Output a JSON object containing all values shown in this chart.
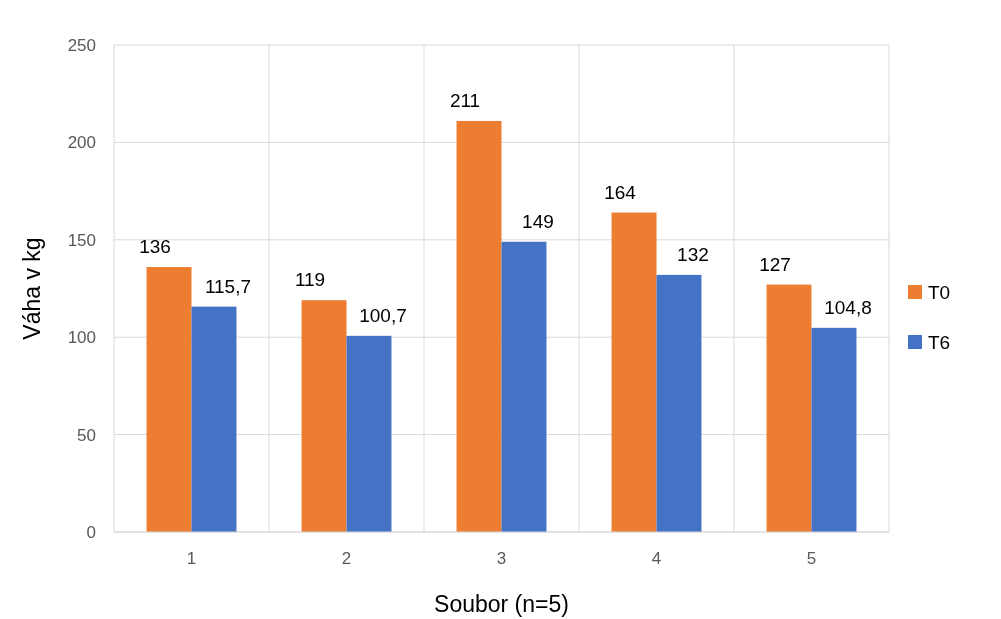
{
  "chart_data": {
    "type": "bar",
    "xlabel": "Soubor (n=5)",
    "ylabel": "Váha v kg",
    "categories": [
      "1",
      "2",
      "3",
      "4",
      "5"
    ],
    "series": [
      {
        "name": "T0",
        "color": "#ed7d31",
        "values": [
          136,
          119,
          211,
          164,
          127
        ],
        "value_labels": [
          "136",
          "119",
          "211",
          "164",
          "127"
        ]
      },
      {
        "name": "T6",
        "color": "#4472c4",
        "values": [
          115.7,
          100.7,
          149,
          132,
          104.8
        ],
        "value_labels": [
          "115,7",
          "100,7",
          "149",
          "132",
          "104,8"
        ]
      }
    ],
    "ylim": [
      0,
      250
    ],
    "yticks": [
      0,
      50,
      100,
      150,
      200,
      250
    ],
    "grid": true,
    "legend": "right"
  }
}
